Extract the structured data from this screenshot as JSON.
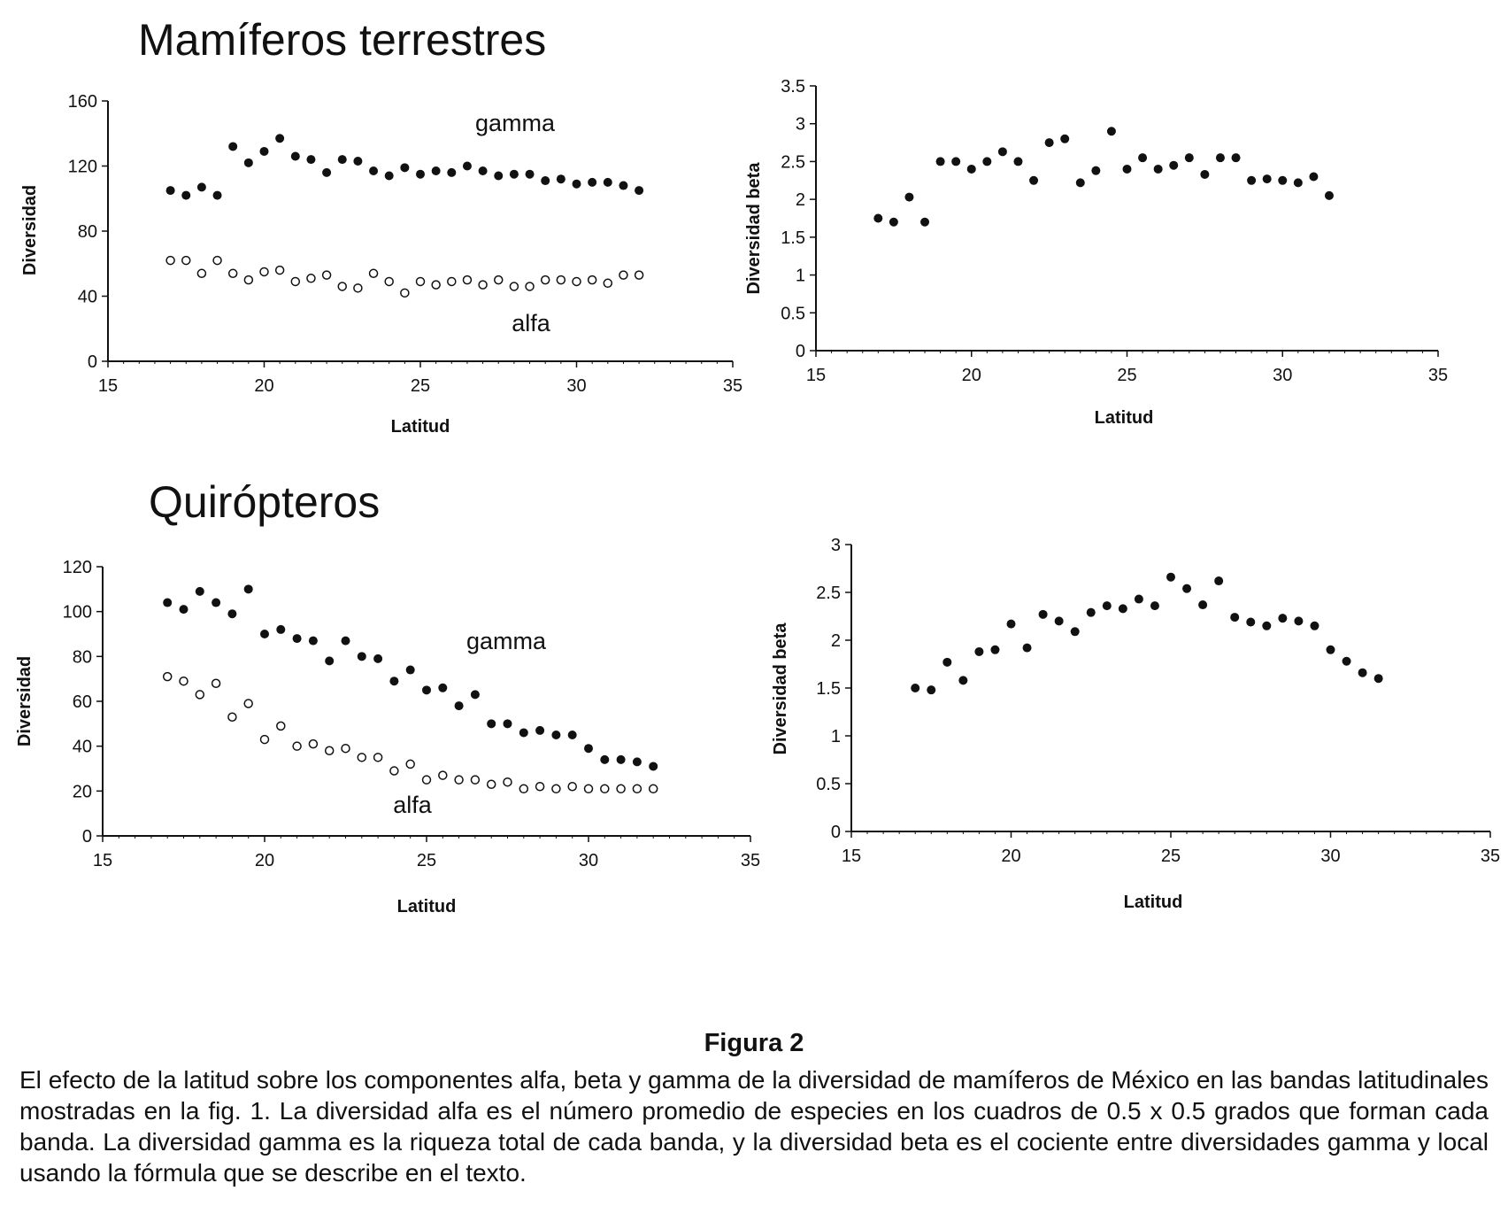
{
  "figure": {
    "title": "Figura 2",
    "caption": "El efecto de la latitud sobre los componentes alfa, beta y gamma de la diversidad de mamíferos de México en las bandas latitudinales mostradas en la fig. 1. La diversidad alfa es el número promedio de especies en los cuadros de 0.5 x 0.5 grados que forman cada banda. La diversidad gamma es la riqueza total de cada banda, y la diversidad beta es el cociente entre diversidades gamma y local usando la fórmula que se describe en el texto."
  },
  "sections": {
    "top_title": "Mamíferos terrestres",
    "bottom_title": "Quirópteros"
  },
  "chart_data": [
    {
      "id": "terr-div",
      "type": "scatter",
      "title": "Mamíferos terrestres",
      "xlabel": "Latitud",
      "ylabel": "Diversidad",
      "xlim": [
        15,
        35
      ],
      "ylim": [
        0,
        160
      ],
      "xticks": [
        15,
        20,
        25,
        30,
        35
      ],
      "yticks": [
        0,
        40,
        80,
        120,
        160
      ],
      "series": [
        {
          "name": "gamma",
          "marker": "filled",
          "x": [
            17,
            17.5,
            18,
            18.5,
            19,
            19.5,
            20,
            20.5,
            21,
            21.5,
            22,
            22.5,
            23,
            23.5,
            24,
            24.5,
            25,
            25.5,
            26,
            26.5,
            27,
            27.5,
            28,
            28.5,
            29,
            29.5,
            30,
            30.5,
            31,
            31.5,
            32
          ],
          "y": [
            105,
            102,
            107,
            102,
            132,
            122,
            129,
            137,
            126,
            124,
            116,
            124,
            123,
            117,
            114,
            119,
            115,
            117,
            116,
            120,
            117,
            114,
            115,
            115,
            111,
            112,
            109,
            110,
            110,
            108,
            105
          ]
        },
        {
          "name": "alfa",
          "marker": "open",
          "x": [
            17,
            17.5,
            18,
            18.5,
            19,
            19.5,
            20,
            20.5,
            21,
            21.5,
            22,
            22.5,
            23,
            23.5,
            24,
            24.5,
            25,
            25.5,
            26,
            26.5,
            27,
            27.5,
            28,
            28.5,
            29,
            29.5,
            30,
            30.5,
            31,
            31.5,
            32
          ],
          "y": [
            62,
            62,
            54,
            62,
            54,
            50,
            55,
            56,
            49,
            51,
            53,
            46,
            45,
            54,
            49,
            42,
            49,
            47,
            49,
            50,
            47,
            50,
            46,
            46,
            50,
            50,
            49,
            50,
            48,
            53,
            53
          ]
        }
      ],
      "annotations": [
        "gamma",
        "alfa"
      ]
    },
    {
      "id": "terr-beta",
      "type": "scatter",
      "xlabel": "Latitud",
      "ylabel": "Diversidad beta",
      "xlim": [
        15,
        35
      ],
      "ylim": [
        0,
        3.5
      ],
      "xticks": [
        15,
        20,
        25,
        30,
        35
      ],
      "yticks": [
        0,
        0.5,
        1,
        1.5,
        2,
        2.5,
        3,
        3.5
      ],
      "series": [
        {
          "name": "beta",
          "marker": "filled",
          "x": [
            17,
            17.5,
            18,
            18.5,
            19,
            19.5,
            20,
            20.5,
            21,
            21.5,
            22,
            22.5,
            23,
            23.5,
            24,
            24.5,
            25,
            25.5,
            26,
            26.5,
            27,
            27.5,
            28,
            28.5,
            29,
            29.5,
            30,
            30.5,
            31,
            31.5
          ],
          "y": [
            1.75,
            1.7,
            2.03,
            1.7,
            2.5,
            2.5,
            2.4,
            2.5,
            2.63,
            2.5,
            2.25,
            2.75,
            2.8,
            2.22,
            2.38,
            2.9,
            2.4,
            2.55,
            2.4,
            2.45,
            2.55,
            2.33,
            2.55,
            2.55,
            2.25,
            2.27,
            2.25,
            2.22,
            2.3,
            2.05
          ]
        }
      ]
    },
    {
      "id": "quir-div",
      "type": "scatter",
      "title": "Quirópteros",
      "xlabel": "Latitud",
      "ylabel": "Diversidad",
      "xlim": [
        15,
        35
      ],
      "ylim": [
        0,
        120
      ],
      "xticks": [
        15,
        20,
        25,
        30,
        35
      ],
      "yticks": [
        0,
        20,
        40,
        60,
        80,
        100,
        120
      ],
      "series": [
        {
          "name": "gamma",
          "marker": "filled",
          "x": [
            17,
            17.5,
            18,
            18.5,
            19,
            19.5,
            20,
            20.5,
            21,
            21.5,
            22,
            22.5,
            23,
            23.5,
            24,
            24.5,
            25,
            25.5,
            26,
            26.5,
            27,
            27.5,
            28,
            28.5,
            29,
            29.5,
            30,
            30.5,
            31,
            31.5,
            32
          ],
          "y": [
            104,
            101,
            109,
            104,
            99,
            110,
            90,
            92,
            88,
            87,
            78,
            87,
            80,
            79,
            69,
            74,
            65,
            66,
            58,
            63,
            50,
            50,
            46,
            47,
            45,
            45,
            39,
            34,
            34,
            33,
            31
          ]
        },
        {
          "name": "alfa",
          "marker": "open",
          "x": [
            17,
            17.5,
            18,
            18.5,
            19,
            19.5,
            20,
            20.5,
            21,
            21.5,
            22,
            22.5,
            23,
            23.5,
            24,
            24.5,
            25,
            25.5,
            26,
            26.5,
            27,
            27.5,
            28,
            28.5,
            29,
            29.5,
            30,
            30.5,
            31,
            31.5,
            32
          ],
          "y": [
            71,
            69,
            63,
            68,
            53,
            59,
            43,
            49,
            40,
            41,
            38,
            39,
            35,
            35,
            29,
            32,
            25,
            27,
            25,
            25,
            23,
            24,
            21,
            22,
            21,
            22,
            21,
            21,
            21,
            21,
            21
          ]
        }
      ],
      "annotations": [
        "gamma",
        "alfa"
      ]
    },
    {
      "id": "quir-beta",
      "type": "scatter",
      "xlabel": "Latitud",
      "ylabel": "Diversidad beta",
      "xlim": [
        15,
        35
      ],
      "ylim": [
        0,
        3
      ],
      "xticks": [
        15,
        20,
        25,
        30,
        35
      ],
      "yticks": [
        0,
        0.5,
        1,
        1.5,
        2,
        2.5,
        3
      ],
      "series": [
        {
          "name": "beta",
          "marker": "filled",
          "x": [
            17,
            17.5,
            18,
            18.5,
            19,
            19.5,
            20,
            20.5,
            21,
            21.5,
            22,
            22.5,
            23,
            23.5,
            24,
            24.5,
            25,
            25.5,
            26,
            26.5,
            27,
            27.5,
            28,
            28.5,
            29,
            29.5,
            30,
            30.5,
            31,
            31.5
          ],
          "y": [
            1.5,
            1.48,
            1.77,
            1.58,
            1.88,
            1.9,
            2.17,
            1.92,
            2.27,
            2.2,
            2.09,
            2.29,
            2.36,
            2.33,
            2.43,
            2.36,
            2.66,
            2.54,
            2.37,
            2.62,
            2.24,
            2.19,
            2.15,
            2.23,
            2.2,
            2.15,
            1.9,
            1.78,
            1.66,
            1.6
          ]
        }
      ]
    }
  ],
  "colors": {
    "ink": "#111111",
    "background": "#ffffff"
  }
}
